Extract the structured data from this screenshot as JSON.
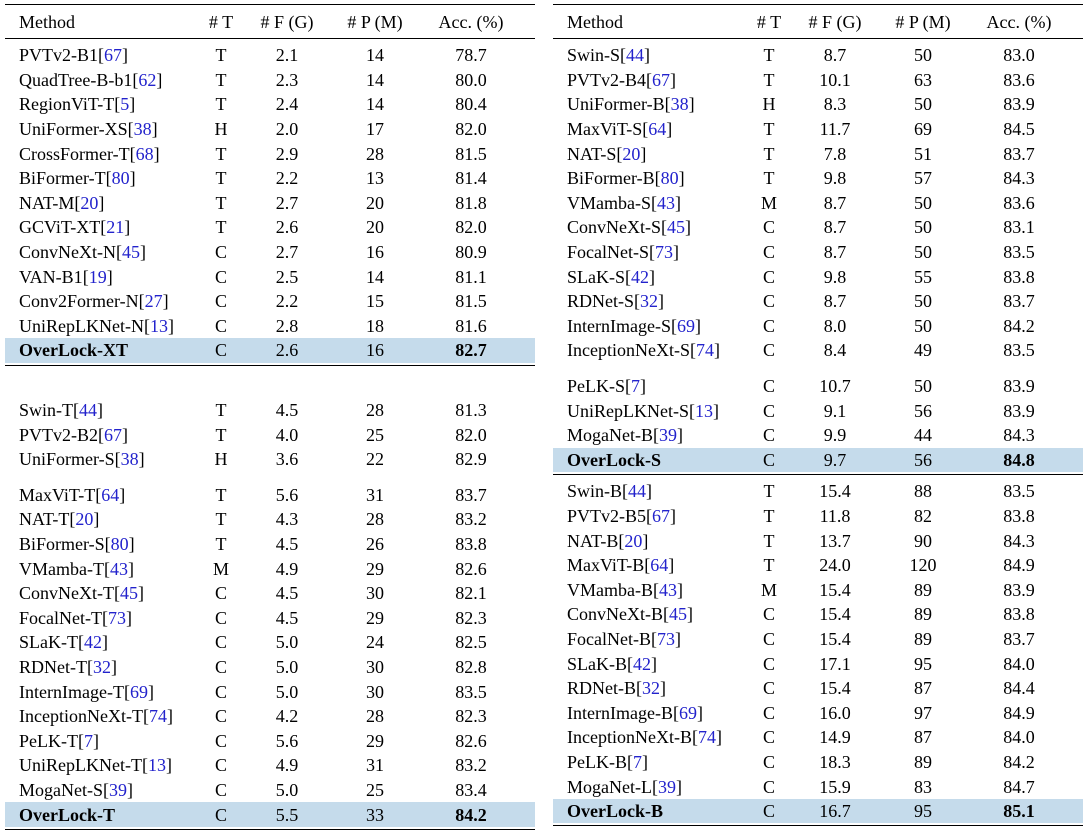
{
  "styles": {
    "highlight_bg": "#c5dbeb",
    "citation_color": "#2222cc",
    "text_color": "#000000"
  },
  "punct": {
    "open": "[",
    "close": "]"
  },
  "header": {
    "columns": [
      "Method",
      "# T",
      "# F (G)",
      "# P (M)",
      "Acc. (%)"
    ],
    "keys": [
      "method",
      "type",
      "flops",
      "params",
      "acc"
    ]
  },
  "tables": [
    {
      "id": "left",
      "groups": [
        {
          "margin_top": "xs",
          "rule_after": true,
          "rows": [
            {
              "method": "PVTv2-B1",
              "cite": "67",
              "type": "T",
              "flops": "2.1",
              "params": "14",
              "acc": "78.7",
              "highlight": false
            },
            {
              "method": "QuadTree-B-b1",
              "cite": "62",
              "type": "T",
              "flops": "2.3",
              "params": "14",
              "acc": "80.0",
              "highlight": false
            },
            {
              "method": "RegionViT-T",
              "cite": "5",
              "type": "T",
              "flops": "2.4",
              "params": "14",
              "acc": "80.4",
              "highlight": false
            },
            {
              "method": "UniFormer-XS",
              "cite": "38",
              "type": "H",
              "flops": "2.0",
              "params": "17",
              "acc": "82.0",
              "highlight": false
            },
            {
              "method": "CrossFormer-T",
              "cite": "68",
              "type": "T",
              "flops": "2.9",
              "params": "28",
              "acc": "81.5",
              "highlight": false
            },
            {
              "method": "BiFormer-T",
              "cite": "80",
              "type": "T",
              "flops": "2.2",
              "params": "13",
              "acc": "81.4",
              "highlight": false
            },
            {
              "method": "NAT-M",
              "cite": "20",
              "type": "T",
              "flops": "2.7",
              "params": "20",
              "acc": "81.8",
              "highlight": false
            },
            {
              "method": "GCViT-XT",
              "cite": "21",
              "type": "T",
              "flops": "2.6",
              "params": "20",
              "acc": "82.0",
              "highlight": false
            },
            {
              "method": "ConvNeXt-N",
              "cite": "45",
              "type": "C",
              "flops": "2.7",
              "params": "16",
              "acc": "80.9",
              "highlight": false
            },
            {
              "method": "VAN-B1",
              "cite": "19",
              "type": "C",
              "flops": "2.5",
              "params": "14",
              "acc": "81.1",
              "highlight": false
            },
            {
              "method": "Conv2Former-N",
              "cite": "27",
              "type": "C",
              "flops": "2.2",
              "params": "15",
              "acc": "81.5",
              "highlight": false
            },
            {
              "method": "UniRepLKNet-N",
              "cite": "13",
              "type": "C",
              "flops": "2.8",
              "params": "18",
              "acc": "81.6",
              "highlight": false
            },
            {
              "method": "OverLock-XT",
              "cite": "",
              "type": "C",
              "flops": "2.6",
              "params": "16",
              "acc": "82.7",
              "highlight": true
            }
          ]
        },
        {
          "margin_top": "lg",
          "rule_after": false,
          "rows": [
            {
              "method": "Swin-T",
              "cite": "44",
              "type": "T",
              "flops": "4.5",
              "params": "28",
              "acc": "81.3",
              "highlight": false
            },
            {
              "method": "PVTv2-B2",
              "cite": "67",
              "type": "T",
              "flops": "4.0",
              "params": "25",
              "acc": "82.0",
              "highlight": false
            },
            {
              "method": "UniFormer-S",
              "cite": "38",
              "type": "H",
              "flops": "3.6",
              "params": "22",
              "acc": "82.9",
              "highlight": false
            }
          ]
        },
        {
          "margin_top": "sm",
          "rule_after": true,
          "rows": [
            {
              "method": "MaxViT-T",
              "cite": "64",
              "type": "T",
              "flops": "5.6",
              "params": "31",
              "acc": "83.7",
              "highlight": false
            },
            {
              "method": "NAT-T",
              "cite": "20",
              "type": "T",
              "flops": "4.3",
              "params": "28",
              "acc": "83.2",
              "highlight": false
            },
            {
              "method": "BiFormer-S",
              "cite": "80",
              "type": "T",
              "flops": "4.5",
              "params": "26",
              "acc": "83.8",
              "highlight": false
            },
            {
              "method": "VMamba-T",
              "cite": "43",
              "type": "M",
              "flops": "4.9",
              "params": "29",
              "acc": "82.6",
              "highlight": false
            },
            {
              "method": "ConvNeXt-T",
              "cite": "45",
              "type": "C",
              "flops": "4.5",
              "params": "30",
              "acc": "82.1",
              "highlight": false
            },
            {
              "method": "FocalNet-T",
              "cite": "73",
              "type": "C",
              "flops": "4.5",
              "params": "29",
              "acc": "82.3",
              "highlight": false
            },
            {
              "method": "SLaK-T",
              "cite": "42",
              "type": "C",
              "flops": "5.0",
              "params": "24",
              "acc": "82.5",
              "highlight": false
            },
            {
              "method": "RDNet-T",
              "cite": "32",
              "type": "C",
              "flops": "5.0",
              "params": "30",
              "acc": "82.8",
              "highlight": false
            },
            {
              "method": "InternImage-T",
              "cite": "69",
              "type": "C",
              "flops": "5.0",
              "params": "30",
              "acc": "83.5",
              "highlight": false
            },
            {
              "method": "InceptionNeXt-T",
              "cite": "74",
              "type": "C",
              "flops": "4.2",
              "params": "28",
              "acc": "82.3",
              "highlight": false
            },
            {
              "method": "PeLK-T",
              "cite": "7",
              "type": "C",
              "flops": "5.6",
              "params": "29",
              "acc": "82.6",
              "highlight": false
            },
            {
              "method": "UniRepLKNet-T",
              "cite": "13",
              "type": "C",
              "flops": "4.9",
              "params": "31",
              "acc": "83.2",
              "highlight": false
            },
            {
              "method": "MogaNet-S",
              "cite": "39",
              "type": "C",
              "flops": "5.0",
              "params": "25",
              "acc": "83.4",
              "highlight": false
            },
            {
              "method": "OverLock-T",
              "cite": "",
              "type": "C",
              "flops": "5.5",
              "params": "33",
              "acc": "84.2",
              "highlight": true
            }
          ]
        }
      ]
    },
    {
      "id": "right",
      "groups": [
        {
          "margin_top": "xs",
          "rule_after": false,
          "rows": [
            {
              "method": "Swin-S",
              "cite": "44",
              "type": "T",
              "flops": "8.7",
              "params": "50",
              "acc": "83.0",
              "highlight": false
            },
            {
              "method": "PVTv2-B4",
              "cite": "67",
              "type": "T",
              "flops": "10.1",
              "params": "63",
              "acc": "83.6",
              "highlight": false
            },
            {
              "method": "UniFormer-B",
              "cite": "38",
              "type": "H",
              "flops": "8.3",
              "params": "50",
              "acc": "83.9",
              "highlight": false
            },
            {
              "method": "MaxViT-S",
              "cite": "64",
              "type": "T",
              "flops": "11.7",
              "params": "69",
              "acc": "84.5",
              "highlight": false
            },
            {
              "method": "NAT-S",
              "cite": "20",
              "type": "T",
              "flops": "7.8",
              "params": "51",
              "acc": "83.7",
              "highlight": false
            },
            {
              "method": "BiFormer-B",
              "cite": "80",
              "type": "T",
              "flops": "9.8",
              "params": "57",
              "acc": "84.3",
              "highlight": false
            },
            {
              "method": "VMamba-S",
              "cite": "43",
              "type": "M",
              "flops": "8.7",
              "params": "50",
              "acc": "83.6",
              "highlight": false
            },
            {
              "method": "ConvNeXt-S",
              "cite": "45",
              "type": "C",
              "flops": "8.7",
              "params": "50",
              "acc": "83.1",
              "highlight": false
            },
            {
              "method": "FocalNet-S",
              "cite": "73",
              "type": "C",
              "flops": "8.7",
              "params": "50",
              "acc": "83.5",
              "highlight": false
            },
            {
              "method": "SLaK-S",
              "cite": "42",
              "type": "C",
              "flops": "9.8",
              "params": "55",
              "acc": "83.8",
              "highlight": false
            },
            {
              "method": "RDNet-S",
              "cite": "32",
              "type": "C",
              "flops": "8.7",
              "params": "50",
              "acc": "83.7",
              "highlight": false
            },
            {
              "method": "InternImage-S",
              "cite": "69",
              "type": "C",
              "flops": "8.0",
              "params": "50",
              "acc": "84.2",
              "highlight": false
            },
            {
              "method": "InceptionNeXt-S",
              "cite": "74",
              "type": "C",
              "flops": "8.4",
              "params": "49",
              "acc": "83.5",
              "highlight": false
            }
          ]
        },
        {
          "margin_top": "sm",
          "rule_after": true,
          "rows": [
            {
              "method": "PeLK-S",
              "cite": "7",
              "type": "C",
              "flops": "10.7",
              "params": "50",
              "acc": "83.9",
              "highlight": false
            },
            {
              "method": "UniRepLKNet-S",
              "cite": "13",
              "type": "C",
              "flops": "9.1",
              "params": "56",
              "acc": "83.9",
              "highlight": false
            },
            {
              "method": "MogaNet-B",
              "cite": "39",
              "type": "C",
              "flops": "9.9",
              "params": "44",
              "acc": "84.3",
              "highlight": false
            },
            {
              "method": "OverLock-S",
              "cite": "",
              "type": "C",
              "flops": "9.7",
              "params": "56",
              "acc": "84.8",
              "highlight": true
            }
          ]
        },
        {
          "margin_top": "xs",
          "rule_after": true,
          "rows": [
            {
              "method": "Swin-B",
              "cite": "44",
              "type": "T",
              "flops": "15.4",
              "params": "88",
              "acc": "83.5",
              "highlight": false
            },
            {
              "method": "PVTv2-B5",
              "cite": "67",
              "type": "T",
              "flops": "11.8",
              "params": "82",
              "acc": "83.8",
              "highlight": false
            },
            {
              "method": "NAT-B",
              "cite": "20",
              "type": "T",
              "flops": "13.7",
              "params": "90",
              "acc": "84.3",
              "highlight": false
            },
            {
              "method": "MaxViT-B",
              "cite": "64",
              "type": "T",
              "flops": "24.0",
              "params": "120",
              "acc": "84.9",
              "highlight": false
            },
            {
              "method": "VMamba-B",
              "cite": "43",
              "type": "M",
              "flops": "15.4",
              "params": "89",
              "acc": "83.9",
              "highlight": false
            },
            {
              "method": "ConvNeXt-B",
              "cite": "45",
              "type": "C",
              "flops": "15.4",
              "params": "89",
              "acc": "83.8",
              "highlight": false
            },
            {
              "method": "FocalNet-B",
              "cite": "73",
              "type": "C",
              "flops": "15.4",
              "params": "89",
              "acc": "83.7",
              "highlight": false
            },
            {
              "method": "SLaK-B",
              "cite": "42",
              "type": "C",
              "flops": "17.1",
              "params": "95",
              "acc": "84.0",
              "highlight": false
            },
            {
              "method": "RDNet-B",
              "cite": "32",
              "type": "C",
              "flops": "15.4",
              "params": "87",
              "acc": "84.4",
              "highlight": false
            },
            {
              "method": "InternImage-B",
              "cite": "69",
              "type": "C",
              "flops": "16.0",
              "params": "97",
              "acc": "84.9",
              "highlight": false
            },
            {
              "method": "InceptionNeXt-B",
              "cite": "74",
              "type": "C",
              "flops": "14.9",
              "params": "87",
              "acc": "84.0",
              "highlight": false
            },
            {
              "method": "PeLK-B",
              "cite": "7",
              "type": "C",
              "flops": "18.3",
              "params": "89",
              "acc": "84.2",
              "highlight": false
            },
            {
              "method": "MogaNet-L",
              "cite": "39",
              "type": "C",
              "flops": "15.9",
              "params": "83",
              "acc": "84.7",
              "highlight": false
            },
            {
              "method": "OverLock-B",
              "cite": "",
              "type": "C",
              "flops": "16.7",
              "params": "95",
              "acc": "85.1",
              "highlight": true
            }
          ]
        }
      ]
    }
  ]
}
